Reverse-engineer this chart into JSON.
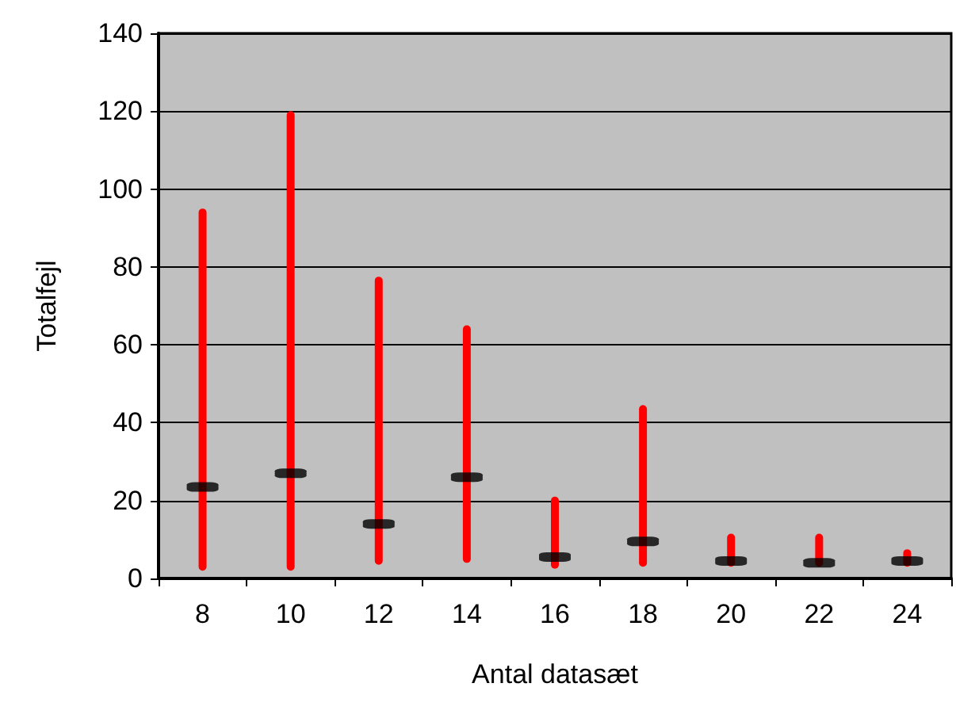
{
  "chart_data": {
    "type": "bar",
    "xlabel": "Antal datasæt",
    "ylabel": "Totalfejl",
    "categories": [
      "8",
      "10",
      "12",
      "14",
      "16",
      "18",
      "20",
      "22",
      "24"
    ],
    "ylim": [
      0,
      140
    ],
    "yticks": [
      0,
      20,
      40,
      60,
      80,
      100,
      120,
      140
    ],
    "grid": "y",
    "series": [
      {
        "type": "bar",
        "color": "#ff0000",
        "base": [
          2,
          2,
          3.5,
          4,
          2.5,
          3,
          3,
          3,
          3
        ],
        "values": [
          93,
          118,
          74,
          61,
          18.5,
          41.5,
          8.5,
          8.5,
          4.5
        ]
      },
      {
        "type": "scatter",
        "color": "#000000",
        "x": [
          "8",
          "10",
          "12",
          "14",
          "16",
          "18",
          "20",
          "22",
          "24"
        ],
        "values": [
          23.5,
          27,
          14,
          26,
          5.5,
          9.5,
          4.5,
          4,
          4.5
        ]
      }
    ]
  }
}
